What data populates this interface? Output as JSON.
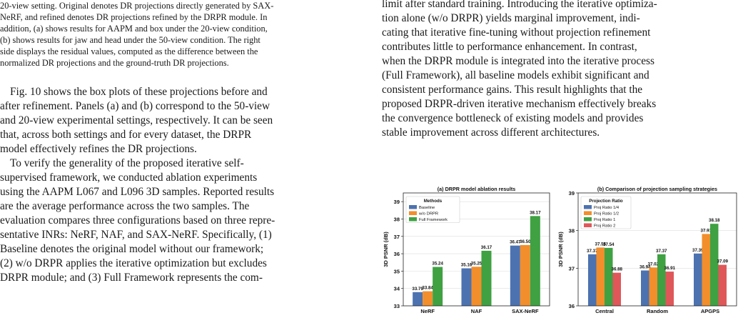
{
  "caption_lines": [
    "20-view setting. Original denotes DR projections directly generated by SAX-",
    "NeRF, and refined denotes DR projections refined by the DRPR module. In",
    "addition, (a) shows results for AAPM and box under the 20-view condition,",
    "(b) shows results for jaw and head under the 50-view condition. The right",
    "side displays the residual values, computed as the difference between the",
    "normalized DR projections and the ground-truth DR projections."
  ],
  "left_paragraphs": [
    [
      "Fig. 10 shows the box plots of these projections before and",
      "after refinement. Panels (a) and (b) correspond to the 50-view",
      "and 20-view experimental settings, respectively. It can be seen",
      "that, across both settings and for every dataset, the DRPR",
      "model effectively refines the DR projections."
    ],
    [
      "To verify the generality of the proposed iterative self-",
      "supervised framework, we conducted ablation experiments",
      "using the AAPM L067 and L096 3D samples. Reported results",
      "are the average performance across the two samples. The",
      "evaluation compares three configurations based on three repre-",
      "sentative INRs: NeRF, NAF, and SAX-NeRF. Specifically, (1)",
      "Baseline denotes the original model without our framework;",
      "(2) w/o DRPR applies the iterative optimization but excludes",
      "DRPR module; and (3) Full Framework represents the com-"
    ]
  ],
  "right_lines": [
    "limit after standard training. Introducing the iterative optimiza-",
    "tion alone (w/o DRPR) yields marginal improvement, indi-",
    "cating that iterative fine-tuning without projection refinement",
    "contributes little to performance enhancement. In contrast,",
    "when the DRPR module is integrated into the iterative process",
    "(Full Framework), all baseline models exhibit significant and",
    "consistent performance gains. This result highlights that the",
    "proposed DRPR-driven iterative mechanism effectively breaks",
    "the convergence bottleneck of existing models and provides",
    "stable improvement across different architectures."
  ],
  "chart_data": [
    {
      "type": "bar",
      "title": "(a) DRPR model ablation results",
      "ylabel": "3D PSNR (dB)",
      "ylim": [
        33,
        39.5
      ],
      "yticks": [
        33,
        34,
        35,
        36,
        37,
        38,
        39
      ],
      "categories": [
        "NeRF",
        "NAF",
        "SAX-NeRF"
      ],
      "legend_title": "Methods",
      "legend_position": "top-left",
      "series": [
        {
          "name": "Baseline",
          "color": "#4c72b0",
          "values": [
            33.79,
            35.16,
            36.47
          ]
        },
        {
          "name": "w/o DRPR",
          "color": "#f28e2b",
          "values": [
            33.84,
            35.25,
            36.5
          ]
        },
        {
          "name": "Full Framework",
          "color": "#3fa142",
          "values": [
            35.24,
            36.17,
            38.17
          ]
        }
      ]
    },
    {
      "type": "bar",
      "title": "(b) Comparison of projection sampling strategies",
      "ylabel": "3D PSNR (dB)",
      "ylim": [
        36,
        39
      ],
      "yticks": [
        36,
        37,
        38,
        39
      ],
      "categories": [
        "Central",
        "Random",
        "APGPS"
      ],
      "legend_title": "Projection Ratio",
      "legend_position": "top-left",
      "series": [
        {
          "name": "Proj Ratio 1/4",
          "color": "#4c72b0",
          "values": [
            37.37,
            36.94,
            37.39
          ]
        },
        {
          "name": "Proj Ratio 1/2",
          "color": "#f28e2b",
          "values": [
            37.55,
            37.02,
            37.91
          ]
        },
        {
          "name": "Proj Ratio 1",
          "color": "#3fa142",
          "values": [
            37.54,
            37.37,
            38.18
          ]
        },
        {
          "name": "Proj Ratio 2",
          "color": "#e05759",
          "values": [
            36.88,
            36.91,
            37.09
          ]
        }
      ]
    }
  ]
}
